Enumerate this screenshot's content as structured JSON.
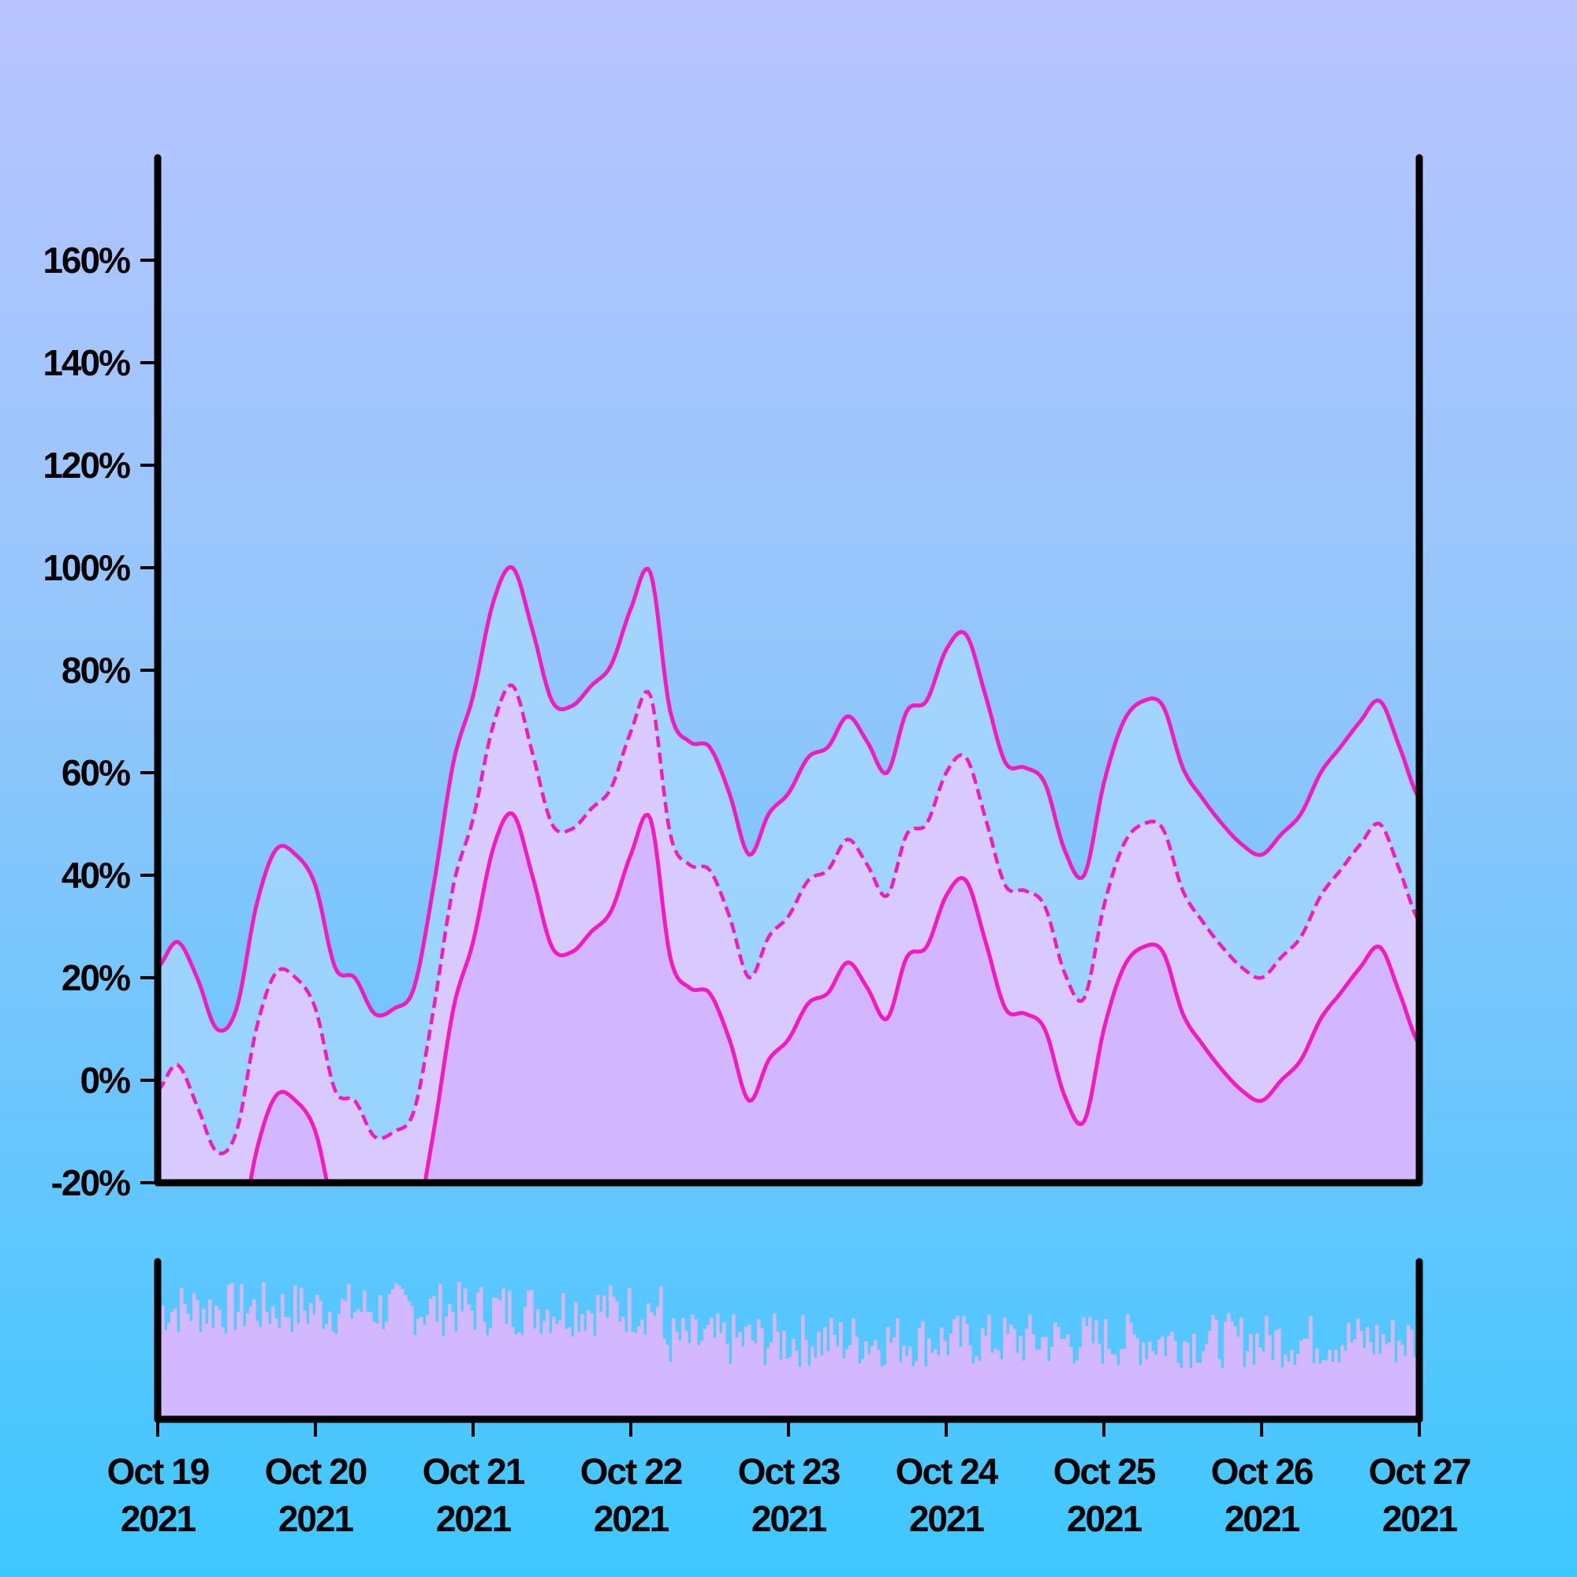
{
  "chart_data": {
    "type": "line",
    "title": "",
    "xlabel": "",
    "ylabel": "",
    "x_range": [
      "2021-10-19",
      "2021-10-27"
    ],
    "ylim": [
      -20,
      180
    ],
    "y_ticks": [
      "160%",
      "140%",
      "120%",
      "100%",
      "80%",
      "60%",
      "40%",
      "20%",
      "0%",
      "-20%"
    ],
    "x_ticks": [
      {
        "line1": "Oct 19",
        "line2": "2021"
      },
      {
        "line1": "Oct 20",
        "line2": "2021"
      },
      {
        "line1": "Oct 21",
        "line2": "2021"
      },
      {
        "line1": "Oct 22",
        "line2": "2021"
      },
      {
        "line1": "Oct 23",
        "line2": "2021"
      },
      {
        "line1": "Oct 24",
        "line2": "2021"
      },
      {
        "line1": "Oct 25",
        "line2": "2021"
      },
      {
        "line1": "Oct 26",
        "line2": "2021"
      },
      {
        "line1": "Oct 27",
        "line2": "2021"
      }
    ],
    "grid": false,
    "legend": "none",
    "x": [
      "2021-10-19 00:00",
      "2021-10-19 03:00",
      "2021-10-19 06:00",
      "2021-10-19 09:00",
      "2021-10-19 12:00",
      "2021-10-19 15:00",
      "2021-10-19 18:00",
      "2021-10-19 21:00",
      "2021-10-20 00:00",
      "2021-10-20 03:00",
      "2021-10-20 06:00",
      "2021-10-20 09:00",
      "2021-10-20 12:00",
      "2021-10-20 15:00",
      "2021-10-20 18:00",
      "2021-10-20 21:00",
      "2021-10-21 00:00",
      "2021-10-21 03:00",
      "2021-10-21 06:00",
      "2021-10-21 09:00",
      "2021-10-21 12:00",
      "2021-10-21 15:00",
      "2021-10-21 18:00",
      "2021-10-21 21:00",
      "2021-10-22 00:00",
      "2021-10-22 03:00",
      "2021-10-22 06:00",
      "2021-10-22 09:00",
      "2021-10-22 12:00",
      "2021-10-22 15:00",
      "2021-10-22 18:00",
      "2021-10-22 21:00",
      "2021-10-23 00:00",
      "2021-10-23 03:00",
      "2021-10-23 06:00",
      "2021-10-23 09:00",
      "2021-10-23 12:00",
      "2021-10-23 15:00",
      "2021-10-23 18:00",
      "2021-10-23 21:00",
      "2021-10-24 00:00",
      "2021-10-24 03:00",
      "2021-10-24 06:00",
      "2021-10-24 09:00",
      "2021-10-24 12:00",
      "2021-10-24 15:00",
      "2021-10-24 18:00",
      "2021-10-24 21:00",
      "2021-10-25 00:00",
      "2021-10-25 03:00",
      "2021-10-25 06:00",
      "2021-10-25 09:00",
      "2021-10-25 12:00",
      "2021-10-25 15:00",
      "2021-10-25 18:00",
      "2021-10-25 21:00",
      "2021-10-26 00:00",
      "2021-10-26 03:00",
      "2021-10-26 06:00",
      "2021-10-26 09:00",
      "2021-10-26 12:00",
      "2021-10-26 15:00",
      "2021-10-26 18:00",
      "2021-10-26 21:00",
      "2021-10-27 00:00"
    ],
    "series": [
      {
        "role": "upper",
        "values": [
          22,
          27,
          20,
          10,
          14,
          34,
          45,
          44,
          38,
          22,
          20,
          13,
          14,
          18,
          38,
          62,
          75,
          93,
          100,
          88,
          74,
          73,
          77,
          81,
          92,
          99,
          72,
          66,
          65,
          56,
          44,
          52,
          56,
          63,
          65,
          71,
          66,
          60,
          72,
          74,
          84,
          87,
          75,
          62,
          61,
          58,
          45,
          40,
          58,
          70,
          74,
          73,
          61,
          55,
          50,
          46,
          44,
          48,
          52,
          60,
          65,
          70,
          74,
          65,
          55
        ]
      },
      {
        "role": "middle",
        "values": [
          -2,
          3,
          -5,
          -14,
          -10,
          10,
          21,
          20,
          14,
          -2,
          -4,
          -11,
          -10,
          -6,
          14,
          38,
          51,
          69,
          77,
          64,
          50,
          49,
          53,
          57,
          68,
          75,
          48,
          42,
          41,
          32,
          20,
          28,
          32,
          39,
          41,
          47,
          42,
          36,
          48,
          50,
          60,
          63,
          51,
          38,
          37,
          34,
          21,
          16,
          34,
          46,
          50,
          49,
          37,
          31,
          26,
          22,
          20,
          24,
          28,
          36,
          41,
          46,
          50,
          41,
          31
        ]
      },
      {
        "role": "lower",
        "values": [
          -26,
          -21,
          -29,
          -38,
          -34,
          -14,
          -3,
          -4,
          -10,
          -26,
          -28,
          -35,
          -34,
          -30,
          -10,
          14,
          27,
          45,
          52,
          40,
          26,
          25,
          29,
          33,
          44,
          51,
          24,
          18,
          17,
          8,
          -4,
          4,
          8,
          15,
          17,
          23,
          18,
          12,
          24,
          26,
          36,
          39,
          27,
          14,
          13,
          10,
          -3,
          -8,
          10,
          22,
          26,
          25,
          13,
          7,
          2,
          -2,
          -4,
          0,
          4,
          12,
          17,
          22,
          26,
          17,
          7
        ]
      }
    ],
    "volume_panel": {
      "present": true,
      "y_ticks": []
    },
    "colors": {
      "band_fill": "#a8d8ff",
      "mid_fill": "#e3c8ff",
      "lower_fill": "#d2b6ff",
      "line": "#f21ac3",
      "axis": "#000000",
      "volume_fill": "#d4b8ff"
    }
  }
}
